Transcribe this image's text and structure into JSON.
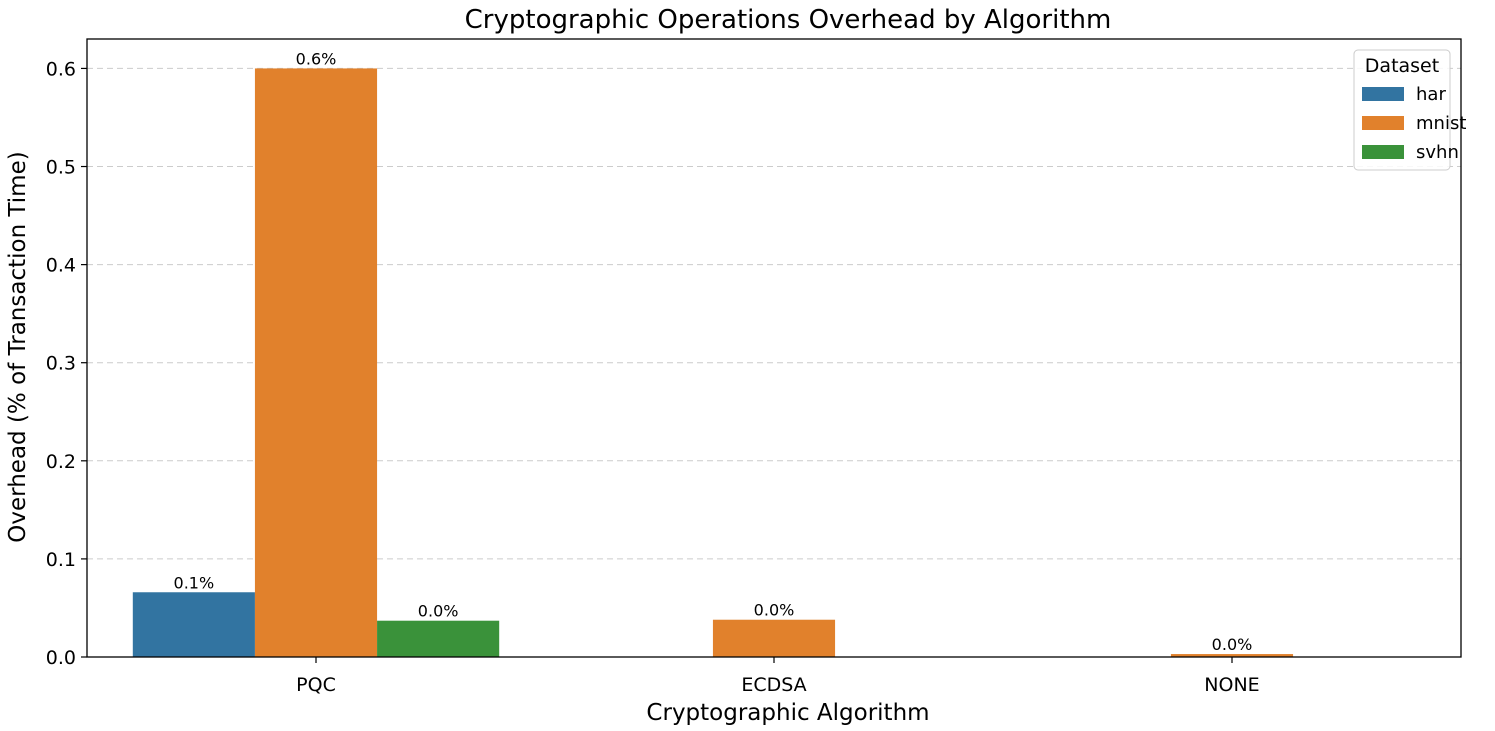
{
  "chart_data": {
    "type": "bar",
    "title": "Cryptographic Operations Overhead by Algorithm",
    "xlabel": "Cryptographic Algorithm",
    "ylabel": "Overhead (% of Transaction Time)",
    "categories": [
      "PQC",
      "ECDSA",
      "NONE"
    ],
    "ylim": [
      0,
      0.63
    ],
    "yticks": [
      0.0,
      0.1,
      0.2,
      0.3,
      0.4,
      0.5,
      0.6
    ],
    "ytick_labels": [
      "0.0",
      "0.1",
      "0.2",
      "0.3",
      "0.4",
      "0.5",
      "0.6"
    ],
    "grid": "y-dashed",
    "legend": {
      "title": "Dataset",
      "placement": "top-right"
    },
    "series": [
      {
        "name": "har",
        "color": "#3274a1",
        "values": [
          0.066,
          null,
          null
        ],
        "labels": [
          "0.1%",
          "",
          ""
        ]
      },
      {
        "name": "mnist",
        "color": "#e1812c",
        "values": [
          0.6,
          0.038,
          0.003
        ],
        "labels": [
          "0.6%",
          "0.0%",
          "0.0%"
        ]
      },
      {
        "name": "svhn",
        "color": "#3a923a",
        "values": [
          0.037,
          null,
          null
        ],
        "labels": [
          "0.0%",
          "",
          ""
        ]
      }
    ]
  }
}
